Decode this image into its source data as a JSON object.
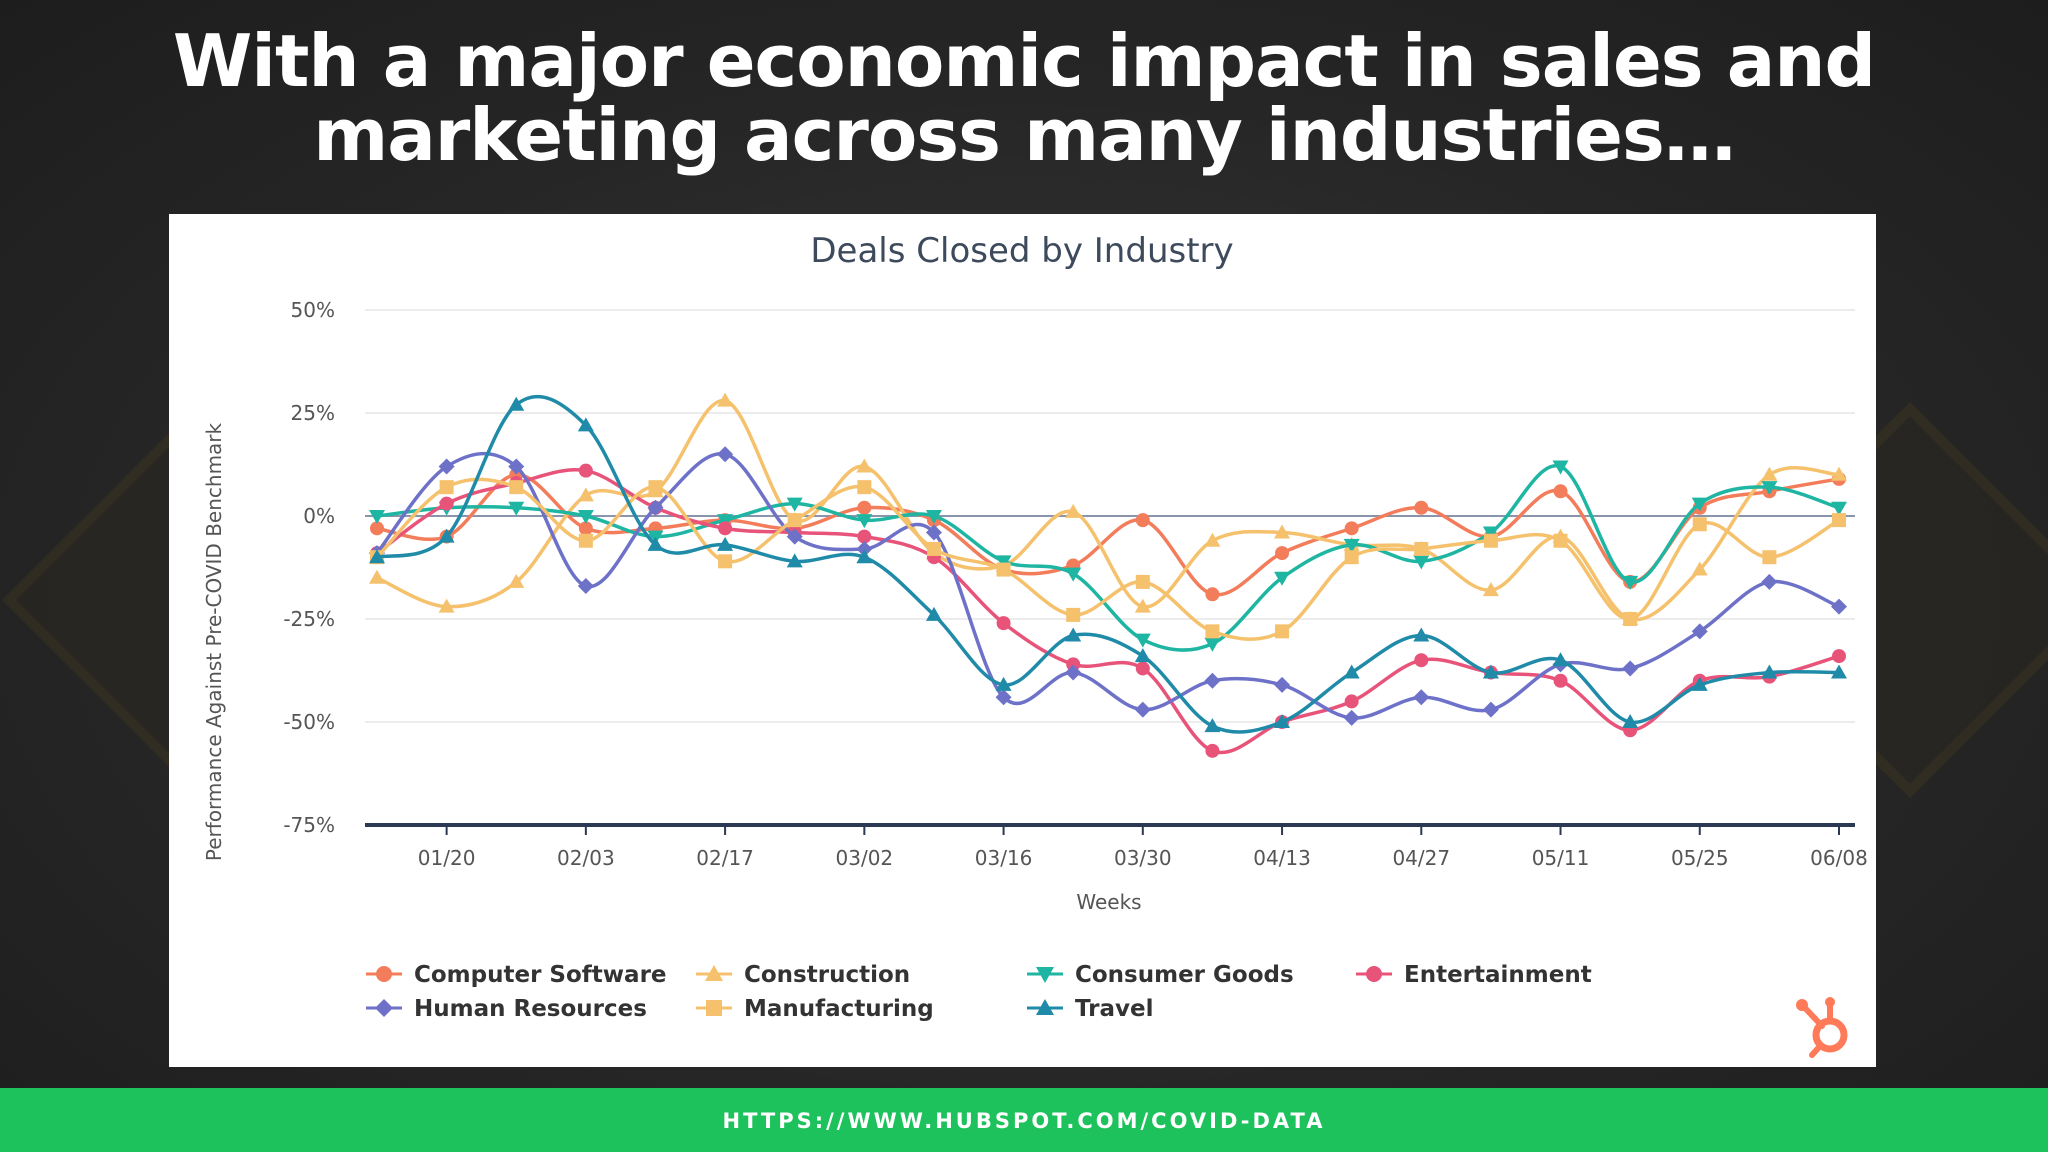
{
  "headline": {
    "line1": "With a major economic impact in sales and",
    "line2": "marketing across many industries…"
  },
  "footer": {
    "url": "HTTPS://WWW.HUBSPOT.COM/COVID-DATA"
  },
  "logo": {
    "icon": "hubspot-sprocket-icon",
    "color": "#ff7a59"
  },
  "chart_data": {
    "type": "line",
    "title": "Deals Closed by Industry",
    "xlabel": "Weeks",
    "ylabel": "Performance Against Pre-COVID Benchmark",
    "ylim": [
      -75,
      50
    ],
    "yticks": [
      "50%",
      "25%",
      "0%",
      "-25%",
      "-50%",
      "-75%"
    ],
    "ytick_values": [
      50,
      25,
      0,
      -25,
      -50,
      -75
    ],
    "x": [
      "01/13",
      "01/20",
      "01/27",
      "02/03",
      "02/10",
      "02/17",
      "02/24",
      "03/02",
      "03/09",
      "03/16",
      "03/23",
      "03/30",
      "04/06",
      "04/13",
      "04/20",
      "04/27",
      "05/04",
      "05/11",
      "05/18",
      "05/25",
      "06/01",
      "06/08"
    ],
    "xtick_labels": [
      "01/20",
      "02/03",
      "02/17",
      "03/02",
      "03/16",
      "03/30",
      "04/13",
      "04/27",
      "05/11",
      "05/25",
      "06/08"
    ],
    "grid": true,
    "legend_position": "bottom",
    "series": [
      {
        "name": "Computer Software",
        "color": "#f37c5a",
        "marker": "circle",
        "values": [
          -3,
          -5,
          10,
          -3,
          -3,
          -1,
          -3,
          2,
          -1,
          -13,
          -12,
          -1,
          -19,
          -9,
          -3,
          2,
          -5,
          6,
          -16,
          2,
          6,
          9
        ]
      },
      {
        "name": "Construction",
        "color": "#f5c16c",
        "marker": "triangle",
        "values": [
          -15,
          -22,
          -16,
          5,
          6,
          28,
          -1,
          12,
          -9,
          -12,
          1,
          -22,
          -6,
          -4,
          -7,
          -8,
          -18,
          -5,
          -25,
          -13,
          10,
          10
        ]
      },
      {
        "name": "Consumer Goods",
        "color": "#1eb5a2",
        "marker": "triangle-down",
        "values": [
          0,
          2,
          2,
          0,
          -5,
          -1,
          3,
          -1,
          0,
          -11,
          -14,
          -30,
          -31,
          -15,
          -7,
          -11,
          -4,
          12,
          -16,
          3,
          7,
          2
        ]
      },
      {
        "name": "Entertainment",
        "color": "#e8537a",
        "marker": "circle",
        "values": [
          -9,
          3,
          8,
          11,
          2,
          -3,
          -4,
          -5,
          -10,
          -26,
          -36,
          -37,
          -57,
          -50,
          -45,
          -35,
          -38,
          -40,
          -52,
          -40,
          -39,
          -34
        ]
      },
      {
        "name": "Human Resources",
        "color": "#6d72c8",
        "marker": "diamond",
        "values": [
          -9,
          12,
          12,
          -17,
          2,
          15,
          -5,
          -8,
          -4,
          -44,
          -38,
          -47,
          -40,
          -41,
          -49,
          -44,
          -47,
          -36,
          -37,
          -28,
          -16,
          -22
        ]
      },
      {
        "name": "Manufacturing",
        "color": "#f5c16c",
        "marker": "square",
        "values": [
          -10,
          7,
          7,
          -6,
          7,
          -11,
          -1,
          7,
          -8,
          -13,
          -24,
          -16,
          -28,
          -28,
          -10,
          -8,
          -6,
          -6,
          -25,
          -2,
          -10,
          -1
        ]
      },
      {
        "name": "Travel",
        "color": "#1f8ba8",
        "marker": "triangle",
        "values": [
          -10,
          -5,
          27,
          22,
          -7,
          -7,
          -11,
          -10,
          -24,
          -41,
          -29,
          -34,
          -51,
          -50,
          -38,
          -29,
          -38,
          -35,
          -50,
          -41,
          -38,
          -38
        ]
      }
    ]
  }
}
